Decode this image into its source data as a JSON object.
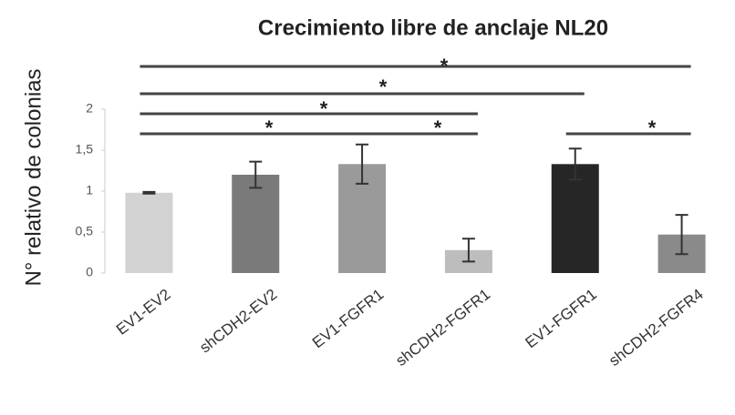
{
  "chart_data": {
    "type": "bar",
    "title": "Crecimiento libre de anclaje NL20",
    "y_label": "N° relativo de colonias",
    "categories": [
      "EV1-EV2",
      "shCDH2-EV2",
      "EV1-FGFR1",
      "shCDH2-FGFR1",
      "EV1-FGFR1",
      "shCDH2-FGFR4"
    ],
    "values": [
      0.98,
      1.2,
      1.33,
      0.28,
      1.33,
      0.47
    ],
    "errors": [
      0.01,
      0.16,
      0.24,
      0.14,
      0.19,
      0.24
    ],
    "colors": [
      "#d2d2d2",
      "#7a7a7a",
      "#9a9a9a",
      "#bdbdbd",
      "#262626",
      "#8a8a8a"
    ],
    "ylim": [
      0,
      2
    ],
    "yticks": [
      0,
      {
        "value": 0.5,
        "label": "0,5"
      },
      1,
      {
        "value": 1.5,
        "label": "1,5"
      },
      2
    ],
    "annotations": [
      "*",
      "*",
      "*",
      "*",
      "*",
      "*"
    ]
  }
}
